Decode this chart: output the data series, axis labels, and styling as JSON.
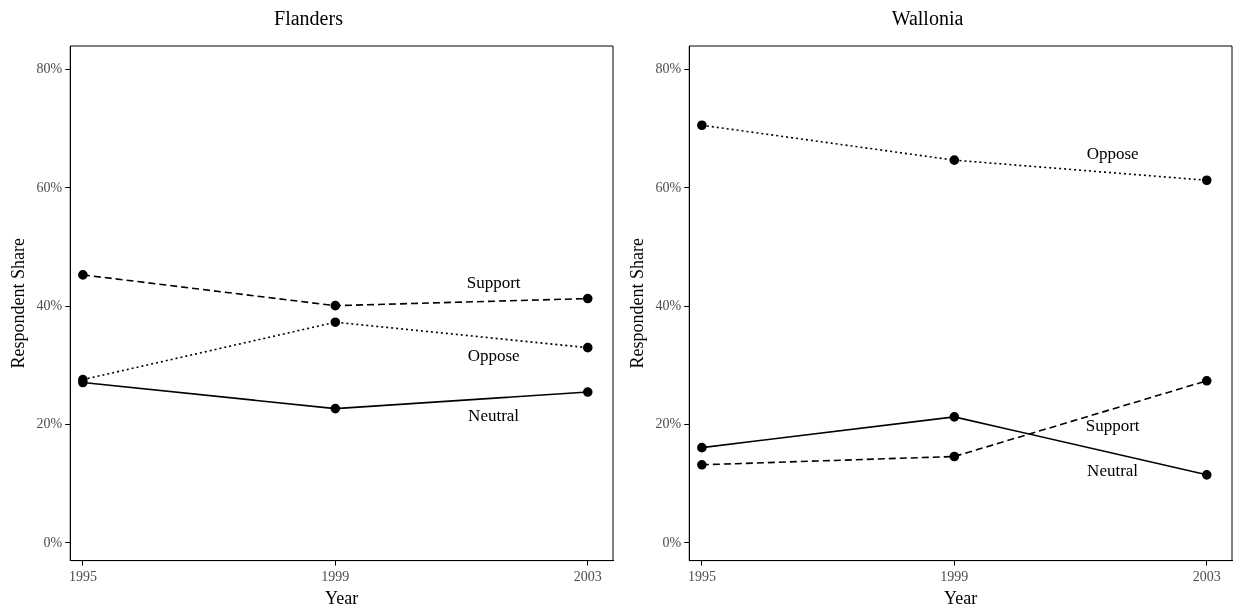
{
  "chart_data": [
    {
      "type": "line",
      "title": "Flanders",
      "xlabel": "Year",
      "ylabel": "Respondent Share",
      "x": [
        1995,
        1999,
        2003
      ],
      "series": [
        {
          "name": "Support",
          "color": "#000000",
          "line_style": "dashed",
          "values": [
            45.3,
            40.1,
            41.3
          ]
        },
        {
          "name": "Oppose",
          "color": "#000000",
          "line_style": "dotted",
          "values": [
            27.6,
            37.3,
            33.0
          ]
        },
        {
          "name": "Neutral",
          "color": "#000000",
          "line_style": "solid",
          "values": [
            27.1,
            22.7,
            25.5
          ]
        }
      ],
      "xlim": [
        1994.8,
        2003.4
      ],
      "xticks": [
        1995,
        1999,
        2003
      ],
      "ylim": [
        -3,
        84
      ],
      "yticks": [
        {
          "value": 0,
          "label": "0%"
        },
        {
          "value": 20,
          "label": "20%"
        },
        {
          "value": 40,
          "label": "40%"
        },
        {
          "value": 60,
          "label": "60%"
        },
        {
          "value": 80,
          "label": "80%"
        }
      ],
      "marker": "circle",
      "grid": false,
      "legend": false
    },
    {
      "type": "line",
      "title": "Wallonia",
      "xlabel": "Year",
      "ylabel": "Respondent Share",
      "x": [
        1995,
        1999,
        2003
      ],
      "series": [
        {
          "name": "Oppose",
          "color": "#000000",
          "line_style": "dotted",
          "values": [
            70.6,
            64.7,
            61.3
          ]
        },
        {
          "name": "Support",
          "color": "#000000",
          "line_style": "dashed",
          "values": [
            13.2,
            14.6,
            27.4
          ]
        },
        {
          "name": "Neutral",
          "color": "#000000",
          "line_style": "solid",
          "values": [
            16.1,
            21.3,
            11.5
          ]
        }
      ],
      "xlim": [
        1994.8,
        2003.4
      ],
      "xticks": [
        1995,
        1999,
        2003
      ],
      "ylim": [
        -3,
        84
      ],
      "yticks": [
        {
          "value": 0,
          "label": "0%"
        },
        {
          "value": 20,
          "label": "20%"
        },
        {
          "value": 40,
          "label": "40%"
        },
        {
          "value": 60,
          "label": "60%"
        },
        {
          "value": 80,
          "label": "80%"
        }
      ],
      "marker": "circle",
      "grid": false,
      "legend": false
    }
  ]
}
